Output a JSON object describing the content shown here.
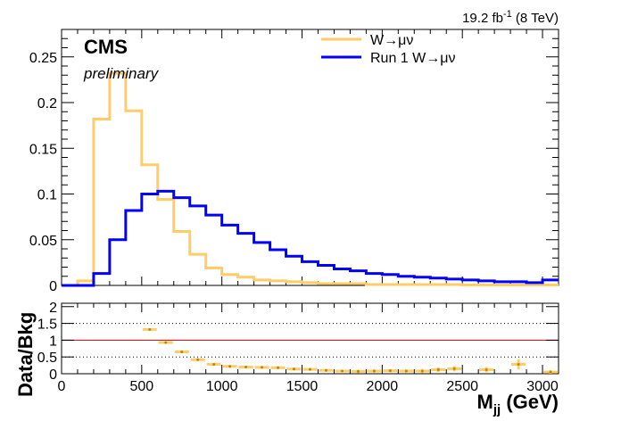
{
  "header": {
    "lumi_value": "19.2 fb",
    "lumi_exp": "-1",
    "lumi_energy": "(8 TeV)"
  },
  "labels": {
    "experiment": "CMS",
    "status": "preliminary"
  },
  "colors": {
    "wmunu": "#ffcc66",
    "run1": "#0000ff",
    "ratio_line": "#cc0000"
  },
  "chart_data": [
    {
      "type": "line",
      "step": true,
      "bin_edges": [
        0,
        100,
        200,
        300,
        400,
        500,
        600,
        700,
        800,
        900,
        1000,
        1100,
        1200,
        1300,
        1400,
        1500,
        1600,
        1700,
        1800,
        1900,
        2000,
        2100,
        2200,
        2300,
        2400,
        2500,
        2600,
        2700,
        2800,
        2900,
        3000,
        3100
      ],
      "xlim": [
        0,
        3100
      ],
      "ylim": [
        0,
        0.28
      ],
      "yticks": [
        "0",
        "0.05",
        "0.1",
        "0.15",
        "0.2",
        "0.25"
      ],
      "series": [
        {
          "name": "W→μν",
          "values": [
            0.0,
            0.005,
            0.182,
            0.232,
            0.191,
            0.132,
            0.094,
            0.059,
            0.034,
            0.019,
            0.012,
            0.009,
            0.006,
            0.005,
            0.004,
            0.003,
            0.002,
            0.002,
            0.002,
            0.001,
            0.001,
            0.001,
            0.001,
            0.001,
            0.001,
            0.0005,
            0.0005,
            0.0005,
            0.0005,
            0.0005,
            0.0005
          ]
        },
        {
          "name": "Run 1 W→μν",
          "values": [
            0.0,
            0.0,
            0.013,
            0.05,
            0.082,
            0.1,
            0.103,
            0.096,
            0.087,
            0.077,
            0.066,
            0.057,
            0.047,
            0.039,
            0.032,
            0.026,
            0.022,
            0.018,
            0.016,
            0.013,
            0.012,
            0.01,
            0.009,
            0.008,
            0.007,
            0.006,
            0.005,
            0.004,
            0.004,
            0.003,
            0.006
          ]
        }
      ]
    },
    {
      "type": "scatter",
      "xlabel_main": "M",
      "xlabel_sub": "jj",
      "xlabel_unit": "(GeV)",
      "ylabel": "Data/Bkg",
      "xlim": [
        0,
        3100
      ],
      "ylim": [
        0,
        2.1
      ],
      "yticks": [
        "0",
        "0.5",
        "1",
        "1.5",
        "2"
      ],
      "xticks": [
        "0",
        "500",
        "1000",
        "1500",
        "2000",
        "2500",
        "3000"
      ],
      "reference_lines": [
        1.0,
        0.5,
        1.5
      ],
      "points": [
        {
          "x": 550,
          "y": 1.32,
          "xerr": 50,
          "yerr": 0.04
        },
        {
          "x": 650,
          "y": 0.93,
          "xerr": 50,
          "yerr": 0.03
        },
        {
          "x": 750,
          "y": 0.65,
          "xerr": 50,
          "yerr": 0.03
        },
        {
          "x": 850,
          "y": 0.42,
          "xerr": 50,
          "yerr": 0.03
        },
        {
          "x": 950,
          "y": 0.28,
          "xerr": 50,
          "yerr": 0.03
        },
        {
          "x": 1050,
          "y": 0.22,
          "xerr": 50,
          "yerr": 0.03
        },
        {
          "x": 1150,
          "y": 0.2,
          "xerr": 50,
          "yerr": 0.03
        },
        {
          "x": 1250,
          "y": 0.19,
          "xerr": 50,
          "yerr": 0.03
        },
        {
          "x": 1350,
          "y": 0.18,
          "xerr": 50,
          "yerr": 0.04
        },
        {
          "x": 1450,
          "y": 0.14,
          "xerr": 50,
          "yerr": 0.04
        },
        {
          "x": 1550,
          "y": 0.13,
          "xerr": 50,
          "yerr": 0.04
        },
        {
          "x": 1650,
          "y": 0.1,
          "xerr": 50,
          "yerr": 0.04
        },
        {
          "x": 1750,
          "y": 0.08,
          "xerr": 50,
          "yerr": 0.04
        },
        {
          "x": 1850,
          "y": 0.07,
          "xerr": 50,
          "yerr": 0.05
        },
        {
          "x": 1950,
          "y": 0.08,
          "xerr": 50,
          "yerr": 0.05
        },
        {
          "x": 2050,
          "y": 0.09,
          "xerr": 50,
          "yerr": 0.05
        },
        {
          "x": 2150,
          "y": 0.08,
          "xerr": 50,
          "yerr": 0.05
        },
        {
          "x": 2250,
          "y": 0.08,
          "xerr": 50,
          "yerr": 0.06
        },
        {
          "x": 2350,
          "y": 0.12,
          "xerr": 50,
          "yerr": 0.07
        },
        {
          "x": 2450,
          "y": 0.15,
          "xerr": 50,
          "yerr": 0.08
        },
        {
          "x": 2650,
          "y": 0.12,
          "xerr": 50,
          "yerr": 0.08
        },
        {
          "x": 2850,
          "y": 0.28,
          "xerr": 50,
          "yerr": 0.15
        },
        {
          "x": 3050,
          "y": 0.05,
          "xerr": 50,
          "yerr": 0.06
        }
      ]
    }
  ]
}
